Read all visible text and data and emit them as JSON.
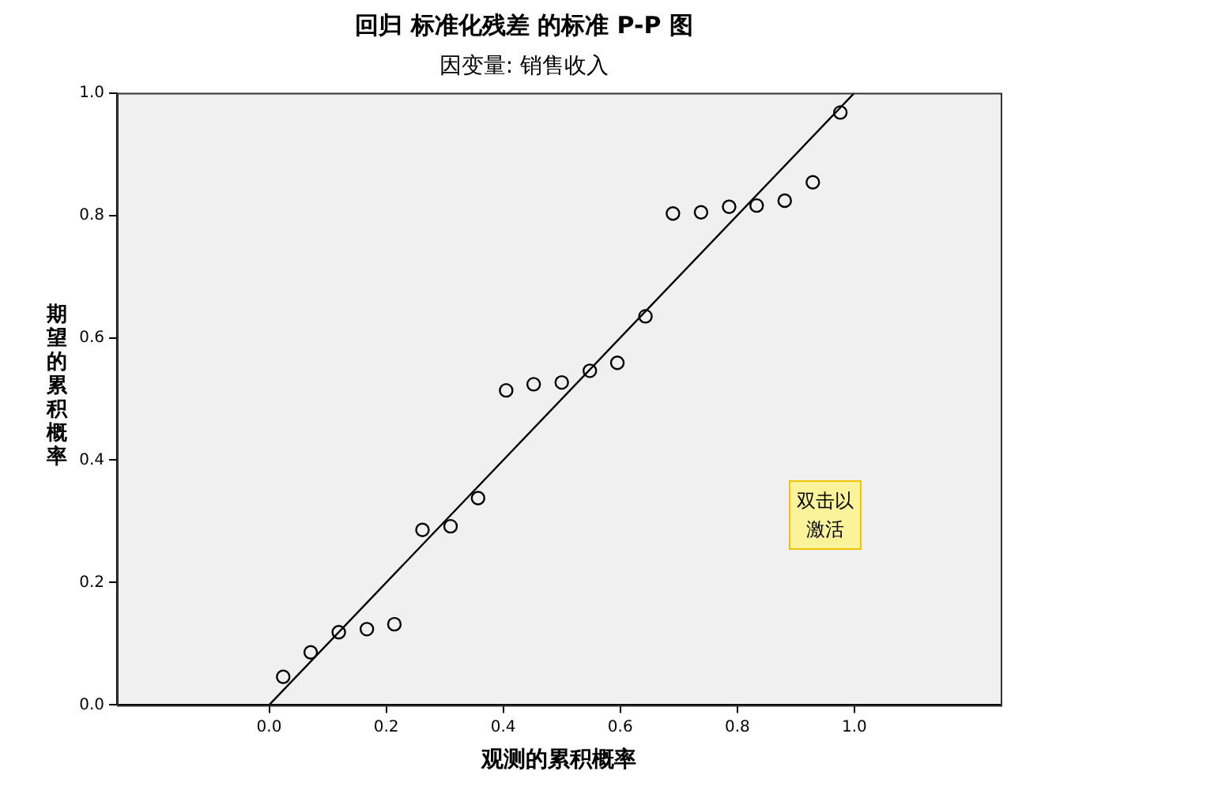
{
  "chart_data": {
    "type": "scatter",
    "title": "回归 标准化残差 的标准 P-P 图",
    "subtitle": "因变量: 销售收入",
    "xlabel": "观测的累积概率",
    "ylabel": "期望的累积概率",
    "xlim": [
      -0.26,
      1.25
    ],
    "ylim": [
      0,
      1
    ],
    "xticks": [
      {
        "value": 0,
        "label": "0.0"
      },
      {
        "value": 0.2,
        "label": "0.2"
      },
      {
        "value": 0.4,
        "label": "0.4"
      },
      {
        "value": 0.6,
        "label": "0.6"
      },
      {
        "value": 0.8,
        "label": "0.8"
      },
      {
        "value": 1,
        "label": "1.0"
      }
    ],
    "yticks": [
      {
        "value": 0,
        "label": "0.0"
      },
      {
        "value": 0.2,
        "label": "0.2"
      },
      {
        "value": 0.4,
        "label": "0.4"
      },
      {
        "value": 0.6,
        "label": "0.6"
      },
      {
        "value": 0.8,
        "label": "0.8"
      },
      {
        "value": 1,
        "label": "1.0"
      }
    ],
    "grid": false,
    "legend": false,
    "marker": "circle",
    "annotations": [
      "双击以激活"
    ],
    "series": [
      {
        "type": "scatter",
        "color": "#000000",
        "x": [
          0.024,
          0.071,
          0.119,
          0.167,
          0.214,
          0.262,
          0.31,
          0.357,
          0.405,
          0.452,
          0.5,
          0.548,
          0.595,
          0.643,
          0.69,
          0.738,
          0.786,
          0.833,
          0.881,
          0.929,
          0.976
        ],
        "values": [
          0.046,
          0.086,
          0.119,
          0.124,
          0.132,
          0.286,
          0.292,
          0.338,
          0.514,
          0.524,
          0.527,
          0.546,
          0.559,
          0.635,
          0.803,
          0.805,
          0.814,
          0.816,
          0.824,
          0.854,
          0.968
        ]
      },
      {
        "type": "line",
        "color": "#000000",
        "marker": "none",
        "line_style": "solid",
        "x": [
          0,
          1
        ],
        "values": [
          0,
          1
        ]
      }
    ]
  }
}
